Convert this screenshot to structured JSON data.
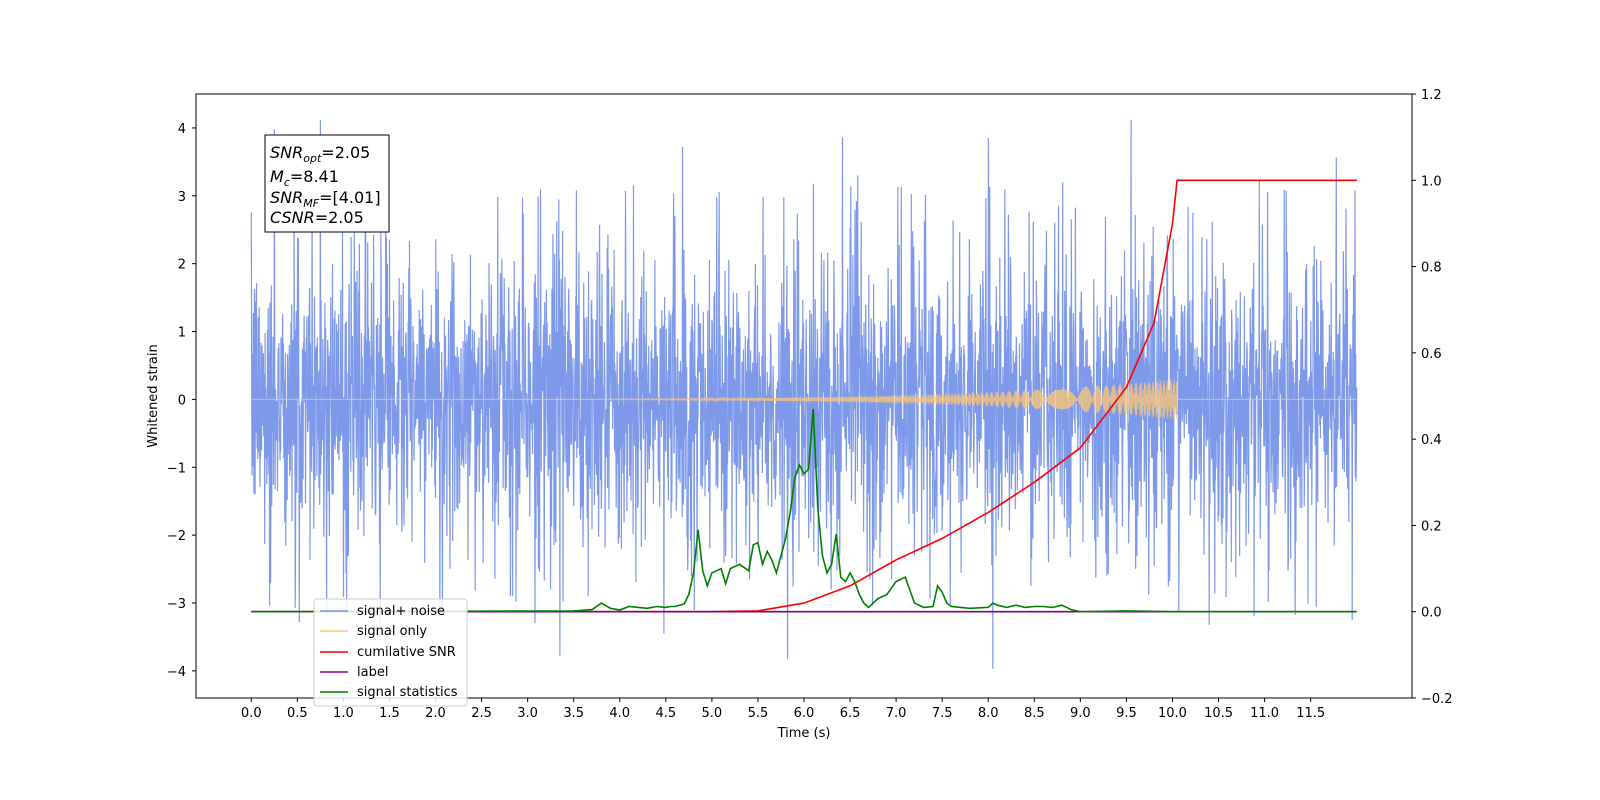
{
  "chart_data": {
    "type": "line",
    "xlabel": "Time (s)",
    "ylabel": "Whitened strain",
    "xlim": [
      -0.6,
      12.6
    ],
    "ylim": [
      -4.4,
      4.5
    ],
    "y2lim": [
      -0.2,
      1.2
    ],
    "x_ticks": [
      "0.0",
      "0.5",
      "1.0",
      "1.5",
      "2.0",
      "2.5",
      "3.0",
      "3.5",
      "4.0",
      "4.5",
      "5.0",
      "5.5",
      "6.0",
      "6.5",
      "7.0",
      "7.5",
      "8.0",
      "8.5",
      "9.0",
      "9.5",
      "10.0",
      "10.5",
      "11.0",
      "11.5"
    ],
    "y_ticks": [
      "4",
      "3",
      "2",
      "1",
      "0",
      "−1",
      "−2",
      "−3",
      "−4"
    ],
    "y2_ticks": [
      "1.2",
      "1.0",
      "0.8",
      "0.6",
      "0.4",
      "0.2",
      "0.0",
      "−0.2"
    ],
    "colors": {
      "noise": "#7793e8",
      "signal": "#ffc773",
      "cumulative": "#ff0000",
      "label": "#800080",
      "stats": "#008000"
    },
    "annotation": {
      "snr_opt": {
        "base": "SNR",
        "sub": "opt",
        "value": "=2.05"
      },
      "mc": {
        "base": "M",
        "sub": "c",
        "value": "=8.41"
      },
      "snr_mf": {
        "base": "SNR",
        "sub": "MF",
        "value": "=[4.01]"
      },
      "csnr": {
        "base": "CSNR",
        "sub": "",
        "value": "=2.05"
      }
    },
    "legend": {
      "position": "lower-left",
      "entries": [
        {
          "label": "signal+ noise",
          "color": "#7793e8"
        },
        {
          "label": "signal only",
          "color": "#ffc773"
        },
        {
          "label": "cumilative SNR",
          "color": "#ff0000"
        },
        {
          "label": "label",
          "color": "#800080"
        },
        {
          "label": "signal statistics",
          "color": "#008000"
        }
      ]
    },
    "series": [
      {
        "name": "signal+ noise",
        "axis": "left",
        "kind": "noise",
        "x_range": [
          0.0,
          12.0
        ],
        "typical_range": [
          -1.6,
          1.6
        ],
        "extremes": [
          {
            "x": 0.25,
            "y": 3.98
          },
          {
            "x": 0.52,
            "y": -3.28
          },
          {
            "x": 0.75,
            "y": 4.12
          },
          {
            "x": 1.4,
            "y": -3.3
          },
          {
            "x": 2.05,
            "y": -3.2
          },
          {
            "x": 3.35,
            "y": -3.78
          },
          {
            "x": 4.68,
            "y": 3.72
          },
          {
            "x": 4.48,
            "y": -3.45
          },
          {
            "x": 5.82,
            "y": -3.82
          },
          {
            "x": 6.42,
            "y": 3.86
          },
          {
            "x": 8.05,
            "y": -3.97
          },
          {
            "x": 8.0,
            "y": 3.85
          },
          {
            "x": 9.55,
            "y": 4.12
          },
          {
            "x": 10.4,
            "y": -3.32
          },
          {
            "x": 11.78,
            "y": 3.56
          },
          {
            "x": 11.95,
            "y": -3.25
          },
          {
            "x": 11.98,
            "y": 3.08
          }
        ]
      },
      {
        "name": "signal only",
        "axis": "left",
        "kind": "chirp",
        "x_range": [
          0.0,
          10.05
        ],
        "peak_amplitude": 0.3,
        "x_after": [
          10.05,
          12.0
        ]
      },
      {
        "name": "cumilative SNR",
        "axis": "right",
        "x": [
          0.0,
          5.0,
          5.5,
          6.0,
          6.5,
          7.0,
          7.5,
          8.0,
          8.5,
          9.0,
          9.5,
          9.8,
          10.0,
          10.05,
          12.0
        ],
        "y": [
          0.0,
          0.0,
          0.002,
          0.02,
          0.06,
          0.12,
          0.17,
          0.23,
          0.3,
          0.38,
          0.52,
          0.67,
          0.9,
          1.0,
          1.0
        ]
      },
      {
        "name": "label",
        "axis": "right",
        "x": [
          0.0,
          12.0
        ],
        "y": [
          0.0,
          0.0
        ]
      },
      {
        "name": "signal statistics",
        "axis": "right",
        "x": [
          0.0,
          3.5,
          3.7,
          3.8,
          3.9,
          4.0,
          4.1,
          4.2,
          4.3,
          4.4,
          4.5,
          4.55,
          4.6,
          4.7,
          4.75,
          4.8,
          4.85,
          4.9,
          4.95,
          5.0,
          5.1,
          5.15,
          5.2,
          5.3,
          5.4,
          5.45,
          5.5,
          5.55,
          5.6,
          5.65,
          5.7,
          5.8,
          5.85,
          5.9,
          5.95,
          6.0,
          6.05,
          6.1,
          6.15,
          6.2,
          6.25,
          6.3,
          6.35,
          6.4,
          6.45,
          6.5,
          6.55,
          6.6,
          6.65,
          6.7,
          6.8,
          6.9,
          7.0,
          7.1,
          7.2,
          7.3,
          7.4,
          7.45,
          7.5,
          7.55,
          7.6,
          7.7,
          7.8,
          8.0,
          8.05,
          8.1,
          8.2,
          8.3,
          8.4,
          8.5,
          8.6,
          8.7,
          8.8,
          8.9,
          9.0,
          9.5,
          10.0,
          12.0
        ],
        "y": [
          0.0,
          0.002,
          0.005,
          0.02,
          0.008,
          0.004,
          0.012,
          0.01,
          0.008,
          0.012,
          0.01,
          0.012,
          0.012,
          0.018,
          0.04,
          0.09,
          0.19,
          0.095,
          0.06,
          0.09,
          0.1,
          0.065,
          0.1,
          0.11,
          0.095,
          0.155,
          0.16,
          0.11,
          0.14,
          0.12,
          0.09,
          0.17,
          0.23,
          0.31,
          0.34,
          0.32,
          0.33,
          0.47,
          0.24,
          0.13,
          0.09,
          0.11,
          0.18,
          0.08,
          0.07,
          0.09,
          0.07,
          0.04,
          0.02,
          0.01,
          0.03,
          0.04,
          0.07,
          0.08,
          0.02,
          0.01,
          0.012,
          0.06,
          0.045,
          0.02,
          0.012,
          0.01,
          0.008,
          0.01,
          0.02,
          0.015,
          0.01,
          0.015,
          0.01,
          0.012,
          0.012,
          0.01,
          0.015,
          0.005,
          0.0,
          0.002,
          0.0,
          0.0
        ]
      }
    ]
  }
}
